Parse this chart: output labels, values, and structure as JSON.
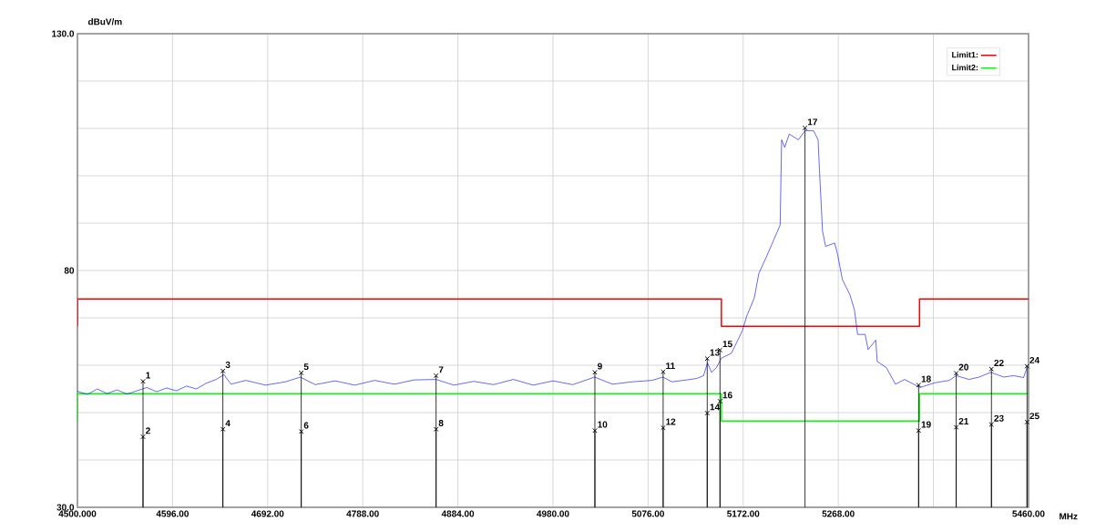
{
  "chart_data": {
    "type": "line",
    "xlabel": "MHz",
    "ylabel": "dBuV/m",
    "xlim": [
      4500,
      5460
    ],
    "ylim": [
      30,
      130
    ],
    "xticks": [
      {
        "value": 4500,
        "label": "4500.000"
      },
      {
        "value": 4596,
        "label": "4596.00"
      },
      {
        "value": 4692,
        "label": "4692.00"
      },
      {
        "value": 4788,
        "label": "4788.00"
      },
      {
        "value": 4884,
        "label": "4884.00"
      },
      {
        "value": 4980,
        "label": "4980.00"
      },
      {
        "value": 5076,
        "label": "5076.00"
      },
      {
        "value": 5172,
        "label": "5172.00"
      },
      {
        "value": 5268,
        "label": "5268.00"
      },
      {
        "value": 5364,
        "label": null
      },
      {
        "value": 5460,
        "label": "5460.00"
      }
    ],
    "yticks": [
      {
        "value": 30,
        "label": "30.0"
      },
      {
        "value": 40,
        "label": null
      },
      {
        "value": 50,
        "label": null
      },
      {
        "value": 60,
        "label": null
      },
      {
        "value": 70,
        "label": null
      },
      80,
      {
        "value": 90,
        "label": null
      },
      {
        "value": 100,
        "label": null
      },
      {
        "value": 110,
        "label": null
      },
      {
        "value": 120,
        "label": null
      },
      {
        "value": 130,
        "label": "130.0"
      }
    ],
    "grid": true,
    "legend": "top right",
    "line_style": "solid",
    "series": [
      {
        "color": "#0000ff",
        "marker": "none",
        "x": [
          4500,
          4510,
          4520,
          4530,
          4540,
          4550,
          4560,
          4570,
          4580,
          4590,
          4600,
          4610,
          4620,
          4630,
          4640,
          4648,
          4655,
          4670,
          4690,
          4710,
          4725,
          4740,
          4760,
          4780,
          4800,
          4820,
          4840,
          4862,
          4880,
          4900,
          4920,
          4940,
          4960,
          4980,
          5000,
          5022,
          5040,
          5060,
          5080,
          5091,
          5100,
          5115,
          5125,
          5132,
          5136,
          5140,
          5145,
          5150,
          5160,
          5171,
          5175.6,
          5183.2,
          5187.8,
          5195.5,
          5209.3,
          5210.8,
          5213.9,
          5218.5,
          5227.7,
          5234.4,
          5243,
          5247.6,
          5249,
          5252.1,
          5255.2,
          5264.4,
          5267.5,
          5272.1,
          5279.7,
          5284.3,
          5287.5,
          5295.1,
          5298.1,
          5305.8,
          5307.3,
          5316.5,
          5325.7,
          5334.9,
          5350.3,
          5365.6,
          5380,
          5387,
          5400,
          5410,
          5422,
          5435,
          5445,
          5455,
          5458.5
        ],
        "values": [
          54.5,
          53.8,
          55.0,
          54.0,
          54.8,
          53.9,
          54.6,
          55.3,
          54.4,
          55.2,
          54.6,
          55.6,
          55.0,
          56.2,
          57.0,
          58.0,
          56.0,
          56.8,
          55.8,
          56.5,
          57.5,
          55.9,
          56.7,
          55.8,
          56.8,
          56.0,
          56.9,
          57.0,
          55.8,
          56.6,
          55.9,
          57.0,
          55.8,
          56.7,
          55.9,
          57.5,
          56.0,
          56.5,
          56.8,
          57.5,
          56.5,
          56.9,
          57.2,
          57.8,
          60.5,
          58.5,
          59.5,
          61.5,
          62.5,
          67.2,
          70.4,
          74.2,
          79.4,
          82.9,
          89.6,
          107.6,
          106,
          108.8,
          107.6,
          109.5,
          109.5,
          107.6,
          101.2,
          88.3,
          85.1,
          85.8,
          83.2,
          78.1,
          74.9,
          71.7,
          66.5,
          66.5,
          63.3,
          65.3,
          60.8,
          59.5,
          56.0,
          57.0,
          55.3,
          56.3,
          56.8,
          57.8,
          57.0,
          57.5,
          58.5,
          57.5,
          57.8,
          57.4,
          59.5
        ]
      },
      {
        "name": "Limit1:",
        "color": "#ff0000",
        "marker": "none",
        "x": [
          4500,
          4500,
          5150,
          5150,
          5350,
          5350,
          5460
        ],
        "values": [
          68.2,
          74,
          74,
          68.2,
          68.2,
          74,
          74
        ]
      },
      {
        "name": "Limit2:",
        "color": "#00ff00",
        "marker": "none",
        "x": [
          4500,
          4500,
          5150,
          5150,
          5350,
          5350,
          5460
        ],
        "values": [
          48.2,
          54,
          54,
          48.2,
          48.2,
          54,
          54
        ]
      },
      {
        "type": "lollipop",
        "color": "#000000",
        "marker": "cross",
        "x": [
          4566.2,
          4566.2,
          4646.8,
          4646.8,
          4725.9,
          4725.9,
          4862,
          4862,
          5022.3,
          5022.3,
          5091.2,
          5091.2,
          5135.7,
          5135.7,
          5148.6,
          5148.6,
          5234.4,
          5349.1,
          5349.1,
          5387,
          5387,
          5422.6,
          5422.6,
          5458.5,
          5458.5
        ],
        "values": [
          56.6,
          44.9,
          58.8,
          46.5,
          58.4,
          46.0,
          57.8,
          46.5,
          58.5,
          46.2,
          58.6,
          46.8,
          61.4,
          49.9,
          63.2,
          52.4,
          110.1,
          55.8,
          46.2,
          58.3,
          46.9,
          59.2,
          47.5,
          59.8,
          48.0
        ]
      }
    ],
    "annotations": [
      {
        "text": "1",
        "x": 4566.2,
        "y": 56.6
      },
      {
        "text": "2",
        "x": 4566.2,
        "y": 44.9
      },
      {
        "text": "3",
        "x": 4646.8,
        "y": 58.8
      },
      {
        "text": "4",
        "x": 4646.8,
        "y": 46.5
      },
      {
        "text": "5",
        "x": 4725.9,
        "y": 58.4
      },
      {
        "text": "6",
        "x": 4725.9,
        "y": 46.0
      },
      {
        "text": "7",
        "x": 4862,
        "y": 57.8
      },
      {
        "text": "8",
        "x": 4862,
        "y": 46.5
      },
      {
        "text": "9",
        "x": 5022.3,
        "y": 58.5
      },
      {
        "text": "10",
        "x": 5022.3,
        "y": 46.2
      },
      {
        "text": "11",
        "x": 5091.2,
        "y": 58.6
      },
      {
        "text": "12",
        "x": 5091.2,
        "y": 46.8
      },
      {
        "text": "13",
        "x": 5135.7,
        "y": 61.4
      },
      {
        "text": "14",
        "x": 5135.7,
        "y": 49.9
      },
      {
        "text": "15",
        "x": 5148.6,
        "y": 63.2
      },
      {
        "text": "16",
        "x": 5148.6,
        "y": 52.4
      },
      {
        "text": "17",
        "x": 5234.4,
        "y": 110.1
      },
      {
        "text": "18",
        "x": 5349.1,
        "y": 55.8
      },
      {
        "text": "19",
        "x": 5349.1,
        "y": 46.2
      },
      {
        "text": "20",
        "x": 5387,
        "y": 58.3
      },
      {
        "text": "21",
        "x": 5387,
        "y": 46.9
      },
      {
        "text": "22",
        "x": 5422.6,
        "y": 59.2
      },
      {
        "text": "23",
        "x": 5422.6,
        "y": 47.5
      },
      {
        "text": "24",
        "x": 5458.5,
        "y": 59.8
      },
      {
        "text": "25",
        "x": 5458.5,
        "y": 48.0
      }
    ]
  }
}
